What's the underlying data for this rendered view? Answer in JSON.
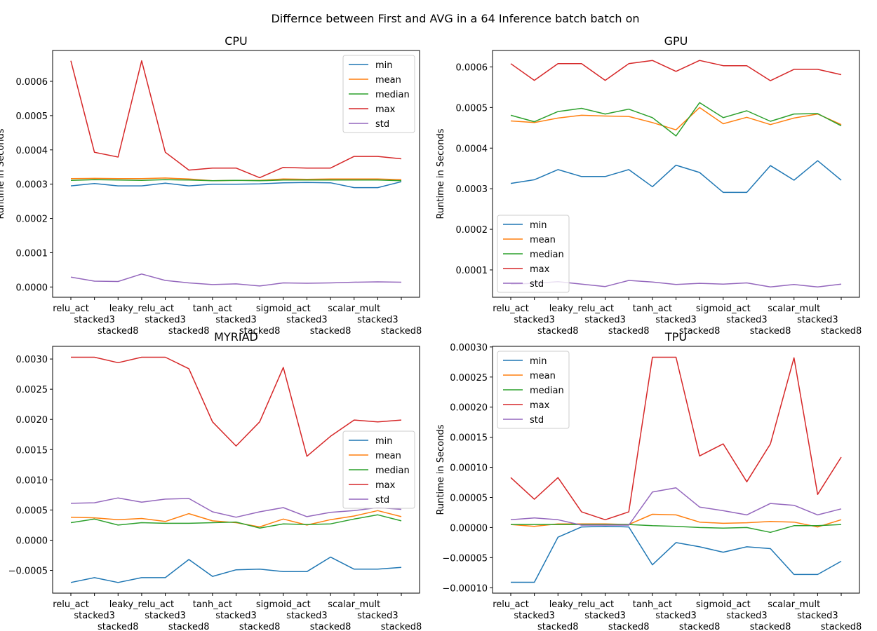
{
  "suptitle": "Differnce between First and AVG in a 64 Inference batch batch on",
  "colors": {
    "min": "#1f77b4",
    "mean": "#ff7f0e",
    "median": "#2ca02c",
    "max": "#d62728",
    "std": "#9467bd"
  },
  "chart_data": [
    {
      "type": "line",
      "title": "CPU",
      "ylabel": "Runtime in Seconds",
      "xlabel": "",
      "categories": [
        "relu_act",
        "stacked3",
        "stacked8",
        "leaky_relu_act",
        "stacked3",
        "stacked8",
        "tanh_act",
        "stacked3",
        "stacked8",
        "sigmoid_act",
        "stacked3",
        "stacked8",
        "scalar_mult",
        "stacked3",
        "stacked8"
      ],
      "ylim": [
        -3e-05,
        0.00069
      ],
      "yticks": [
        0.0,
        0.0001,
        0.0002,
        0.0003,
        0.0004,
        0.0005,
        0.0006
      ],
      "ytick_labels": [
        "0.0000",
        "0.0001",
        "0.0002",
        "0.0003",
        "0.0004",
        "0.0005",
        "0.0006"
      ],
      "legend_position": "upper right",
      "series": [
        {
          "name": "min",
          "values": [
            0.000295,
            0.000302,
            0.000295,
            0.000295,
            0.000303,
            0.000295,
            0.0003,
            0.0003,
            0.000301,
            0.000304,
            0.000305,
            0.000304,
            0.00029,
            0.00029,
            0.000307
          ]
        },
        {
          "name": "mean",
          "values": [
            0.000316,
            0.000317,
            0.000316,
            0.000316,
            0.000318,
            0.000315,
            0.00031,
            0.000311,
            0.000311,
            0.000315,
            0.000314,
            0.000315,
            0.000315,
            0.000315,
            0.000313
          ]
        },
        {
          "name": "median",
          "values": [
            0.000311,
            0.000313,
            0.000312,
            0.000311,
            0.000313,
            0.000312,
            0.00031,
            0.000311,
            0.00031,
            0.000312,
            0.000312,
            0.000312,
            0.000312,
            0.000312,
            0.00031
          ]
        },
        {
          "name": "max",
          "values": [
            0.00066,
            0.000393,
            0.000379,
            0.00066,
            0.000393,
            0.000341,
            0.000347,
            0.000347,
            0.000319,
            0.000349,
            0.000347,
            0.000347,
            0.000381,
            0.000381,
            0.000374
          ]
        },
        {
          "name": "std",
          "values": [
            2.9e-05,
            1.7e-05,
            1.6e-05,
            3.8e-05,
            1.9e-05,
            1.2e-05,
            7e-06,
            9e-06,
            3e-06,
            1.2e-05,
            1.1e-05,
            1.2e-05,
            1.4e-05,
            1.5e-05,
            1.4e-05
          ]
        }
      ]
    },
    {
      "type": "line",
      "title": "GPU",
      "ylabel": "Runtime in Seconds",
      "xlabel": "",
      "categories": [
        "relu_act",
        "stacked3",
        "stacked8",
        "leaky_relu_act",
        "stacked3",
        "stacked8",
        "tanh_act",
        "stacked3",
        "stacked8",
        "sigmoid_act",
        "stacked3",
        "stacked8",
        "scalar_mult",
        "stacked3",
        "stacked8"
      ],
      "ylim": [
        3.26e-05,
        0.0006405
      ],
      "yticks": [
        0.0001,
        0.0002,
        0.0003,
        0.0004,
        0.0005,
        0.0006
      ],
      "ytick_labels": [
        "0.0001",
        "0.0002",
        "0.0003",
        "0.0004",
        "0.0005",
        "0.0006"
      ],
      "legend_position": "lower left",
      "series": [
        {
          "name": "min",
          "values": [
            0.000313,
            0.000322,
            0.000347,
            0.00033,
            0.00033,
            0.000347,
            0.000305,
            0.000358,
            0.00034,
            0.000291,
            0.000291,
            0.000357,
            0.000321,
            0.000369,
            0.000321
          ]
        },
        {
          "name": "mean",
          "values": [
            0.000467,
            0.000463,
            0.000474,
            0.000481,
            0.000479,
            0.000478,
            0.000463,
            0.000445,
            0.0005,
            0.00046,
            0.000476,
            0.000458,
            0.000474,
            0.000484,
            0.000458
          ]
        },
        {
          "name": "median",
          "values": [
            0.000481,
            0.000465,
            0.00049,
            0.000498,
            0.000484,
            0.000496,
            0.000475,
            0.00043,
            0.000512,
            0.000475,
            0.000492,
            0.000466,
            0.000484,
            0.000485,
            0.000455
          ]
        },
        {
          "name": "max",
          "values": [
            0.000608,
            0.000567,
            0.000608,
            0.000608,
            0.000567,
            0.000608,
            0.000616,
            0.000589,
            0.000616,
            0.000603,
            0.000603,
            0.000566,
            0.000594,
            0.000594,
            0.000581
          ]
        },
        {
          "name": "std",
          "values": [
            6.5e-05,
            6.7e-05,
            7.1e-05,
            6.5e-05,
            5.9e-05,
            7.4e-05,
            7e-05,
            6.4e-05,
            6.7e-05,
            6.5e-05,
            6.8e-05,
            5.8e-05,
            6.4e-05,
            5.8e-05,
            6.5e-05
          ]
        }
      ]
    },
    {
      "type": "line",
      "title": "MYRIAD",
      "ylabel": "",
      "xlabel": "",
      "categories": [
        "relu_act",
        "stacked3",
        "stacked8",
        "leaky_relu_act",
        "stacked3",
        "stacked8",
        "tanh_act",
        "stacked3",
        "stacked8",
        "sigmoid_act",
        "stacked3",
        "stacked8",
        "scalar_mult",
        "stacked3",
        "stacked8"
      ],
      "ylim": [
        -0.000877,
        0.00321
      ],
      "yticks": [
        -0.0005,
        0.0,
        0.0005,
        0.001,
        0.0015,
        0.002,
        0.0025,
        0.003
      ],
      "ytick_labels": [
        "−0.0005",
        "0.0000",
        "0.0005",
        "0.0010",
        "0.0015",
        "0.0020",
        "0.0025",
        "0.0030"
      ],
      "legend_position": "center right",
      "series": [
        {
          "name": "min",
          "values": [
            -0.0007,
            -0.00062,
            -0.0007,
            -0.00062,
            -0.00062,
            -0.00032,
            -0.0006,
            -0.00049,
            -0.00048,
            -0.00052,
            -0.00052,
            -0.00028,
            -0.00048,
            -0.00048,
            -0.00045
          ]
        },
        {
          "name": "mean",
          "values": [
            0.00038,
            0.00037,
            0.00034,
            0.00036,
            0.00031,
            0.00044,
            0.00032,
            0.00029,
            0.00022,
            0.00035,
            0.00025,
            0.00034,
            0.0004,
            0.00049,
            0.00039
          ]
        },
        {
          "name": "median",
          "values": [
            0.00029,
            0.00035,
            0.00025,
            0.00029,
            0.00028,
            0.00028,
            0.00029,
            0.0003,
            0.0002,
            0.00027,
            0.00026,
            0.00027,
            0.00035,
            0.00042,
            0.00032
          ]
        },
        {
          "name": "max",
          "values": [
            0.00303,
            0.00303,
            0.00294,
            0.00303,
            0.00303,
            0.00284,
            0.00196,
            0.00156,
            0.00196,
            0.00286,
            0.00139,
            0.00172,
            0.00199,
            0.00196,
            0.00199
          ]
        },
        {
          "name": "std",
          "values": [
            0.00061,
            0.00062,
            0.0007,
            0.00063,
            0.00068,
            0.00069,
            0.00047,
            0.00038,
            0.00047,
            0.00054,
            0.00039,
            0.00046,
            0.00049,
            0.00054,
            0.00051
          ]
        }
      ]
    },
    {
      "type": "line",
      "title": "TPU",
      "ylabel": "Runtime in Seconds",
      "xlabel": "",
      "categories": [
        "relu_act",
        "stacked3",
        "stacked8",
        "leaky_relu_act",
        "stacked3",
        "stacked8",
        "tanh_act",
        "stacked3",
        "stacked8",
        "sigmoid_act",
        "stacked3",
        "stacked8",
        "scalar_mult",
        "stacked3",
        "stacked8"
      ],
      "ylim": [
        -0.000109,
        0.000301
      ],
      "yticks": [
        -0.0001,
        -5e-05,
        0.0,
        5e-05,
        0.0001,
        0.00015,
        0.0002,
        0.00025,
        0.0003
      ],
      "ytick_labels": [
        "−0.00010",
        "−0.00005",
        "0.00000",
        "0.00005",
        "0.00010",
        "0.00015",
        "0.00020",
        "0.00025",
        "0.00030"
      ],
      "legend_position": "upper left",
      "series": [
        {
          "name": "min",
          "values": [
            -9.1e-05,
            -9.1e-05,
            -1.6e-05,
            1e-06,
            2e-06,
            1e-06,
            -6.2e-05,
            -2.5e-05,
            -3.2e-05,
            -4.1e-05,
            -3.2e-05,
            -3.5e-05,
            -7.8e-05,
            -7.8e-05,
            -5.6e-05
          ]
        },
        {
          "name": "mean",
          "values": [
            5e-06,
            2e-06,
            6e-06,
            6e-06,
            6e-06,
            5e-06,
            2.2e-05,
            2.1e-05,
            9e-06,
            7e-06,
            8e-06,
            1e-05,
            9e-06,
            1e-06,
            1.3e-05
          ]
        },
        {
          "name": "median",
          "values": [
            5e-06,
            5e-06,
            5e-06,
            5e-06,
            5e-06,
            5e-06,
            3e-06,
            2e-06,
            0.0,
            -1e-06,
            0.0,
            -8e-06,
            3e-06,
            3e-06,
            5e-06
          ]
        },
        {
          "name": "max",
          "values": [
            8.3e-05,
            4.7e-05,
            8.3e-05,
            2.6e-05,
            1.3e-05,
            2.6e-05,
            0.000283,
            0.000283,
            0.000119,
            0.000139,
            7.6e-05,
            0.000139,
            0.000282,
            5.5e-05,
            0.000117
          ]
        },
        {
          "name": "std",
          "values": [
            1.3e-05,
            1.6e-05,
            1.3e-05,
            4e-06,
            4e-06,
            4e-06,
            5.9e-05,
            6.6e-05,
            3.4e-05,
            2.8e-05,
            2.1e-05,
            4e-05,
            3.7e-05,
            2.1e-05,
            3.1e-05
          ]
        }
      ]
    }
  ]
}
